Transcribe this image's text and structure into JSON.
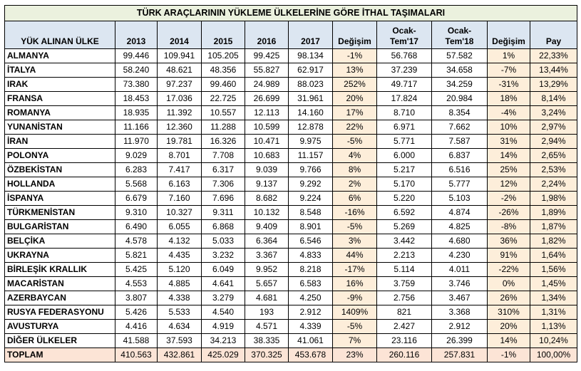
{
  "title": "TÜRK ARAÇLARININ YÜKLEME ÜLKELERİNE GÖRE İTHAL TAŞIMALARI",
  "headers": [
    "YÜK ALINAN ÜLKE",
    "2013",
    "2014",
    "2015",
    "2016",
    "2017",
    "Değişim",
    "Ocak-\nTem'17",
    "Ocak-\nTem'18",
    "Değişim",
    "Pay"
  ],
  "rows": [
    [
      "ALMANYA",
      "99.446",
      "109.941",
      "105.205",
      "99.425",
      "98.134",
      "-1%",
      "56.768",
      "57.582",
      "1%",
      "22,33%"
    ],
    [
      "İTALYA",
      "58.240",
      "48.621",
      "48.356",
      "55.827",
      "62.917",
      "13%",
      "37.239",
      "34.658",
      "-7%",
      "13,44%"
    ],
    [
      "IRAK",
      "73.380",
      "97.237",
      "99.460",
      "24.989",
      "88.023",
      "252%",
      "49.717",
      "34.259",
      "-31%",
      "13,29%"
    ],
    [
      "FRANSA",
      "18.453",
      "17.036",
      "22.725",
      "26.699",
      "31.961",
      "20%",
      "17.824",
      "20.984",
      "18%",
      "8,14%"
    ],
    [
      "ROMANYA",
      "18.935",
      "11.392",
      "10.557",
      "12.113",
      "14.160",
      "17%",
      "8.710",
      "8.354",
      "-4%",
      "3,24%"
    ],
    [
      "YUNANİSTAN",
      "11.166",
      "12.360",
      "11.288",
      "10.599",
      "12.878",
      "22%",
      "6.971",
      "7.662",
      "10%",
      "2,97%"
    ],
    [
      "İRAN",
      "11.970",
      "19.781",
      "16.326",
      "10.471",
      "9.975",
      "-5%",
      "5.771",
      "7.587",
      "31%",
      "2,94%"
    ],
    [
      "POLONYA",
      "9.029",
      "8.701",
      "7.708",
      "10.683",
      "11.157",
      "4%",
      "6.000",
      "6.837",
      "14%",
      "2,65%"
    ],
    [
      "ÖZBEKİSTAN",
      "6.283",
      "7.417",
      "6.317",
      "9.039",
      "9.766",
      "8%",
      "5.217",
      "6.516",
      "25%",
      "2,53%"
    ],
    [
      "HOLLANDA",
      "5.568",
      "6.163",
      "7.306",
      "9.137",
      "9.292",
      "2%",
      "5.170",
      "5.777",
      "12%",
      "2,24%"
    ],
    [
      "İSPANYA",
      "6.679",
      "7.160",
      "7.696",
      "8.682",
      "9.224",
      "6%",
      "5.220",
      "5.103",
      "-2%",
      "1,98%"
    ],
    [
      "TÜRKMENİSTAN",
      "9.310",
      "10.327",
      "9.311",
      "10.132",
      "8.548",
      "-16%",
      "6.592",
      "4.874",
      "-26%",
      "1,89%"
    ],
    [
      "BULGARİSTAN",
      "6.490",
      "6.055",
      "6.868",
      "9.409",
      "8.901",
      "-5%",
      "5.269",
      "4.825",
      "-8%",
      "1,87%"
    ],
    [
      "BELÇİKA",
      "4.578",
      "4.132",
      "5.033",
      "6.364",
      "6.546",
      "3%",
      "3.442",
      "4.680",
      "36%",
      "1,82%"
    ],
    [
      "UKRAYNA",
      "5.821",
      "4.435",
      "3.232",
      "3.367",
      "4.833",
      "44%",
      "2.213",
      "4.230",
      "91%",
      "1,64%"
    ],
    [
      "BİRLEŞİK KRALLIK",
      "5.425",
      "5.120",
      "6.049",
      "9.952",
      "8.218",
      "-17%",
      "5.114",
      "4.011",
      "-22%",
      "1,56%"
    ],
    [
      "MACARİSTAN",
      "4.553",
      "4.885",
      "4.641",
      "5.657",
      "6.583",
      "16%",
      "3.759",
      "3.746",
      "0%",
      "1,45%"
    ],
    [
      "AZERBAYCAN",
      "3.807",
      "4.338",
      "3.279",
      "4.681",
      "4.250",
      "-9%",
      "2.756",
      "3.467",
      "26%",
      "1,34%"
    ],
    [
      "RUSYA FEDERASYONU",
      "5.426",
      "5.533",
      "4.540",
      "193",
      "2.912",
      "1409%",
      "821",
      "3.368",
      "310%",
      "1,31%"
    ],
    [
      "AVUSTURYA",
      "4.416",
      "4.634",
      "4.919",
      "4.571",
      "4.339",
      "-5%",
      "2.427",
      "2.912",
      "20%",
      "1,13%"
    ],
    [
      "DİĞER ÜLKELER",
      "41.588",
      "37.593",
      "34.213",
      "38.335",
      "41.061",
      "7%",
      "23.116",
      "26.399",
      "14%",
      "10,24%"
    ]
  ],
  "total": [
    "TOPLAM",
    "410.563",
    "432.861",
    "425.029",
    "370.325",
    "453.678",
    "23%",
    "260.116",
    "257.831",
    "-1%",
    "100,00%"
  ],
  "colors": {
    "title_bg": "#ebf1de",
    "header_bg": "#dce6f1",
    "highlight_bg": "#fdeeda",
    "total_bg": "#fce4d6"
  }
}
